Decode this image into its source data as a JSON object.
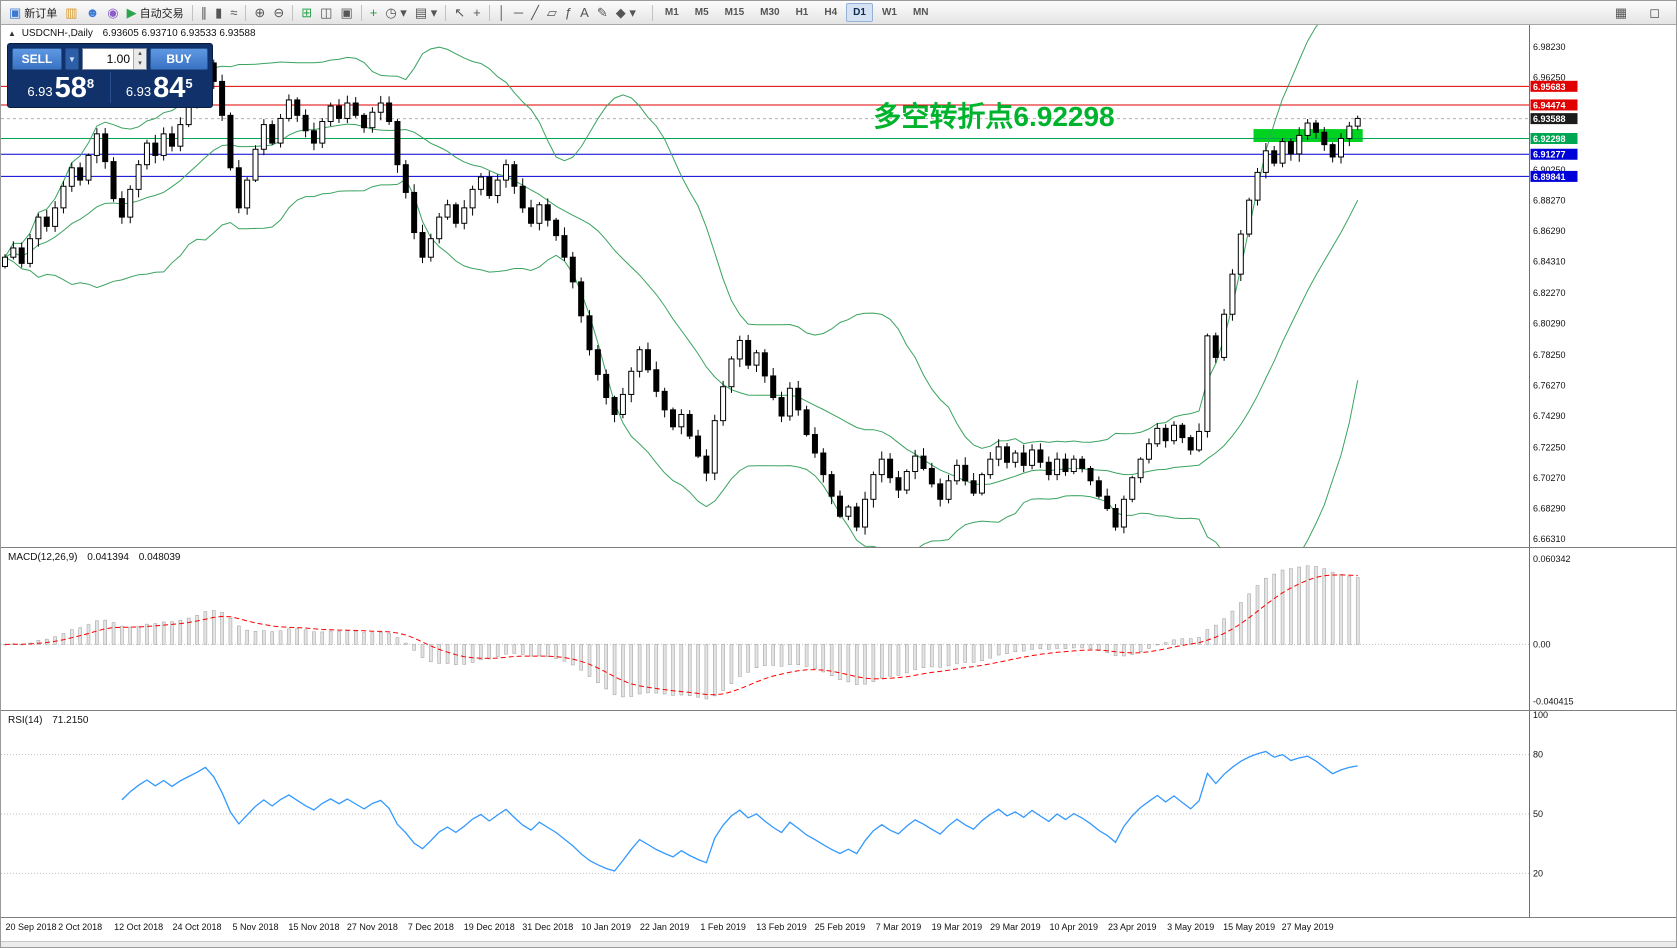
{
  "toolbar": {
    "groups": [
      {
        "items": [
          {
            "name": "new-order-button",
            "glyph": "▣",
            "glyph_color": "#3c7ad1",
            "label": "新订单"
          },
          {
            "name": "chart-windows-icon",
            "glyph": "▥",
            "glyph_color": "#d79a2c"
          },
          {
            "name": "community-icon",
            "glyph": "☻",
            "glyph_color": "#3c7ad1"
          },
          {
            "name": "support-icon",
            "glyph": "◉",
            "glyph_color": "#8a5fc9"
          },
          {
            "name": "autotrade-button",
            "glyph": "▶",
            "glyph_color": "#2ca44e",
            "label": "自动交易"
          }
        ]
      },
      {
        "items": [
          {
            "name": "ohlc-bars-mode-icon",
            "glyph": "∥"
          },
          {
            "name": "candlestick-mode-icon",
            "glyph": "▮"
          },
          {
            "name": "line-chart-mode-icon",
            "glyph": "≈"
          }
        ]
      },
      {
        "items": [
          {
            "name": "zoom-in-icon",
            "glyph": "⊕"
          },
          {
            "name": "zoom-out-icon",
            "glyph": "⊖"
          }
        ]
      },
      {
        "items": [
          {
            "name": "grid-icon",
            "glyph": "⊞",
            "glyph_color": "#2ca44e"
          },
          {
            "name": "tile-windows-icon",
            "glyph": "◫"
          },
          {
            "name": "cascade-windows-icon",
            "glyph": "▣"
          }
        ]
      },
      {
        "items": [
          {
            "name": "indicators-button",
            "glyph": "+",
            "glyph_color": "#1f9e3d"
          },
          {
            "name": "periods-button",
            "glyph": "◷ ▾"
          },
          {
            "name": "templates-button",
            "glyph": "▤ ▾"
          }
        ]
      },
      {
        "items": [
          {
            "name": "cursor-icon",
            "glyph": "↖"
          },
          {
            "name": "crosshair-icon",
            "glyph": "+"
          }
        ]
      },
      {
        "items": [
          {
            "name": "vertical-line-icon",
            "glyph": "│"
          },
          {
            "name": "horizontal-line-icon",
            "glyph": "─"
          },
          {
            "name": "trendline-icon",
            "glyph": "╱"
          },
          {
            "name": "channel-icon",
            "glyph": "▱"
          },
          {
            "name": "fibonacci-icon",
            "glyph": "ƒ"
          },
          {
            "name": "text-icon",
            "glyph": "A"
          },
          {
            "name": "text-label-icon",
            "glyph": "✎"
          },
          {
            "name": "shapes-button",
            "glyph": "◆ ▾"
          }
        ]
      }
    ],
    "timeframes": [
      "M1",
      "M5",
      "M15",
      "M30",
      "H1",
      "H4",
      "D1",
      "W1",
      "MN"
    ],
    "active_timeframe": "D1",
    "right_items": [
      {
        "name": "print-button",
        "glyph": "▦"
      },
      {
        "name": "preview-button",
        "glyph": "◻"
      }
    ]
  },
  "trade_panel": {
    "sell_label": "SELL",
    "buy_label": "BUY",
    "volume_value": "1.00",
    "sell_price": {
      "prefix": "6.93",
      "big": "58",
      "sup": "8"
    },
    "buy_price": {
      "prefix": "6.93",
      "big": "84",
      "sup": "5"
    }
  },
  "chart_data": {
    "type": "candlestick+indicators",
    "symbol_period": "USDCNH-,Daily",
    "ohlc": "6.93605 6.93710 6.93533 6.93588",
    "x_dates": [
      "20 Sep 2018",
      "2 Oct 2018",
      "12 Oct 2018",
      "24 Oct 2018",
      "5 Nov 2018",
      "15 Nov 2018",
      "27 Nov 2018",
      "7 Dec 2018",
      "19 Dec 2018",
      "31 Dec 2018",
      "10 Jan 2019",
      "22 Jan 2019",
      "1 Feb 2019",
      "13 Feb 2019",
      "25 Feb 2019",
      "7 Mar 2019",
      "19 Mar 2019",
      "29 Mar 2019",
      "10 Apr 2019",
      "23 Apr 2019",
      "3 May 2019",
      "15 May 2019",
      "27 May 2019"
    ],
    "tick_indices": [
      2,
      9,
      16,
      23,
      30,
      37,
      44,
      51,
      58,
      65,
      72,
      79,
      86,
      93,
      100,
      107,
      114,
      121,
      128,
      135,
      142,
      149,
      156
    ],
    "closes": [
      6.846,
      6.852,
      6.842,
      6.858,
      6.872,
      6.866,
      6.878,
      6.892,
      6.904,
      6.896,
      6.912,
      6.926,
      6.908,
      6.884,
      6.872,
      6.89,
      6.906,
      6.92,
      6.912,
      6.926,
      6.918,
      6.932,
      6.944,
      6.956,
      6.972,
      6.96,
      6.938,
      6.904,
      6.878,
      6.896,
      6.916,
      6.932,
      6.92,
      6.936,
      6.948,
      6.938,
      6.928,
      6.92,
      6.934,
      6.944,
      6.936,
      6.946,
      6.938,
      6.93,
      6.94,
      6.946,
      6.934,
      6.906,
      6.888,
      6.862,
      6.846,
      6.858,
      6.872,
      6.88,
      6.868,
      6.878,
      6.89,
      6.898,
      6.886,
      6.896,
      6.906,
      6.892,
      6.878,
      6.868,
      6.88,
      6.87,
      6.86,
      6.846,
      6.83,
      6.808,
      6.786,
      6.77,
      6.755,
      6.744,
      6.757,
      6.772,
      6.786,
      6.773,
      6.759,
      6.747,
      6.736,
      6.744,
      6.73,
      6.717,
      6.706,
      6.74,
      6.762,
      6.78,
      6.792,
      6.776,
      6.784,
      6.769,
      6.755,
      6.743,
      6.761,
      6.747,
      6.731,
      6.719,
      6.705,
      6.691,
      6.678,
      6.684,
      6.671,
      6.689,
      6.705,
      6.715,
      6.703,
      6.695,
      6.707,
      6.717,
      6.709,
      6.699,
      6.689,
      6.701,
      6.711,
      6.701,
      6.693,
      6.705,
      6.715,
      6.723,
      6.713,
      6.719,
      6.711,
      6.721,
      6.713,
      6.705,
      6.715,
      6.707,
      6.715,
      6.709,
      6.701,
      6.691,
      6.683,
      6.671,
      6.689,
      6.703,
      6.715,
      6.725,
      6.735,
      6.727,
      6.737,
      6.729,
      6.721,
      6.733,
      6.795,
      6.781,
      6.809,
      6.835,
      6.861,
      6.883,
      6.901,
      6.915,
      6.907,
      6.921,
      6.913,
      6.925,
      6.933,
      6.927,
      6.919,
      6.911,
      6.923,
      6.931,
      6.936
    ],
    "price_axis_labels": [
      {
        "v": 6.9823,
        "t": "6.98230"
      },
      {
        "v": 6.9625,
        "t": "6.96250"
      },
      {
        "v": 6.9025,
        "t": "6.90250"
      },
      {
        "v": 6.8827,
        "t": "6.88270"
      },
      {
        "v": 6.8629,
        "t": "6.86290"
      },
      {
        "v": 6.8431,
        "t": "6.84310"
      },
      {
        "v": 6.8227,
        "t": "6.82270"
      },
      {
        "v": 6.8029,
        "t": "6.80290"
      },
      {
        "v": 6.7825,
        "t": "6.78250"
      },
      {
        "v": 6.7627,
        "t": "6.76270"
      },
      {
        "v": 6.7429,
        "t": "6.74290"
      },
      {
        "v": 6.7225,
        "t": "6.72250"
      },
      {
        "v": 6.7027,
        "t": "6.70270"
      },
      {
        "v": 6.6829,
        "t": "6.68290"
      },
      {
        "v": 6.6631,
        "t": "6.66310"
      }
    ],
    "hlines": [
      {
        "price": 6.95683,
        "label": "6.95683",
        "color": "#e00000"
      },
      {
        "price": 6.94474,
        "label": "6.94474",
        "color": "#e00000"
      },
      {
        "price": 6.92298,
        "label": "6.92298",
        "color": "#00a651"
      },
      {
        "price": 6.91277,
        "label": "6.91277",
        "color": "#0000d8"
      },
      {
        "price": 6.89841,
        "label": "6.89841",
        "color": "#0000d8"
      }
    ],
    "current_price": {
      "price": 6.93588,
      "label": "6.93588",
      "badge_color": "#1c1c1c"
    },
    "highlight_rect": {
      "start_index": 150,
      "price_top": 6.9291,
      "price_bottom": 6.9207,
      "color": "#00d31f"
    },
    "annotation": {
      "text": "多空转折点6.92298",
      "color": "#00b32c",
      "bar_index": 104,
      "price": 6.931
    },
    "bollinger": {
      "period": 20,
      "deviation": 2,
      "color": "#3aa35f"
    },
    "candles": {
      "up_fill": "#ffffff",
      "down_fill": "#000000",
      "stroke": "#000000"
    },
    "macd": {
      "label": "MACD(12,26,9)",
      "value_main": "0.041394",
      "value_signal": "0.048039",
      "bar_fill": "#e3e3e3",
      "bar_stroke": "#9b9b9b",
      "signal_color": "#ff0000",
      "axis_labels": [
        {
          "v": 0.060342,
          "t": "0.060342"
        },
        {
          "v": 0,
          "t": "0.00"
        },
        {
          "v": -0.040415,
          "t": "-0.040415"
        }
      ],
      "range": {
        "max": 0.064,
        "min": -0.045
      }
    },
    "rsi": {
      "label": "RSI(14)",
      "value": "71.2150",
      "line_color": "#3399ff",
      "levels": [
        {
          "v": 100,
          "t": "100",
          "line": false
        },
        {
          "v": 80,
          "t": "80",
          "line": true
        },
        {
          "v": 50,
          "t": "50",
          "line": true
        },
        {
          "v": 20,
          "t": "20",
          "line": true
        }
      ],
      "range": {
        "max": 100,
        "min": 0
      }
    }
  }
}
